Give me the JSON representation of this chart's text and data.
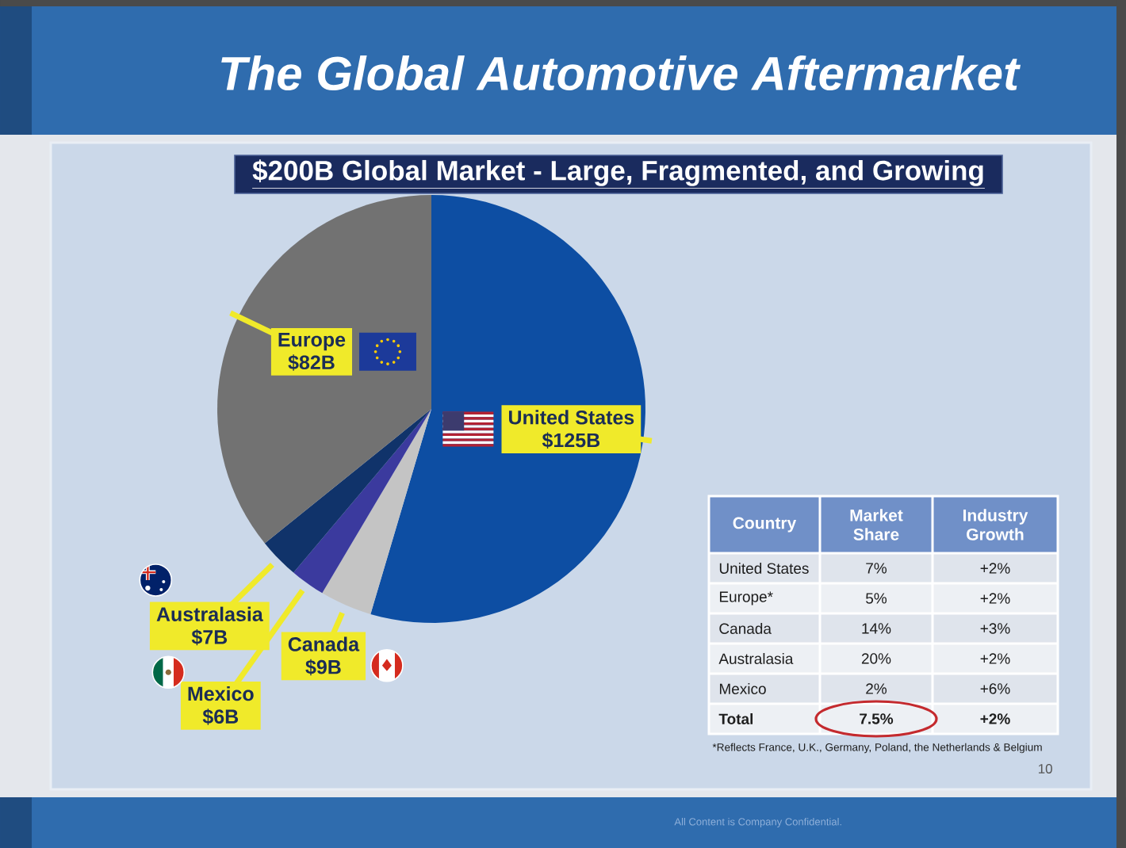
{
  "chart_data": [
    {
      "type": "pie",
      "title": "The Global Automotive Aftermarket",
      "subtitle": "$200B Global Market -  Large, Fragmented, and Growing",
      "categories": [
        "United States",
        "Canada",
        "Mexico",
        "Australasia",
        "Europe"
      ],
      "values": [
        125,
        9,
        6,
        7,
        82
      ],
      "colors": [
        "#0d4ea3",
        "#c4c4c4",
        "#3b3a9e",
        "#10336a",
        "#727272"
      ],
      "value_labels": [
        "$125B",
        "$9B",
        "$6B",
        "$7B",
        "$82B"
      ],
      "annotations": [
        "10",
        "All Content is Company Confidential."
      ]
    },
    {
      "type": "other",
      "categories": [
        "Country",
        "Market Share",
        "Industry Growth"
      ],
      "y_categories": [
        "United States",
        "Europe*",
        "Canada",
        "Australasia",
        "Mexico",
        "Total"
      ],
      "cell_labels": [
        [
          "7%",
          "+2%"
        ],
        [
          "5%",
          "+2%"
        ],
        [
          "14%",
          "+3%"
        ],
        [
          "20%",
          "+2%"
        ],
        [
          "2%",
          "+6%"
        ],
        [
          "7.5%",
          "+2%"
        ]
      ],
      "annotations": [
        "*Reflects France, U.K., Germany, Poland, the Netherlands & Belgium"
      ]
    }
  ]
}
